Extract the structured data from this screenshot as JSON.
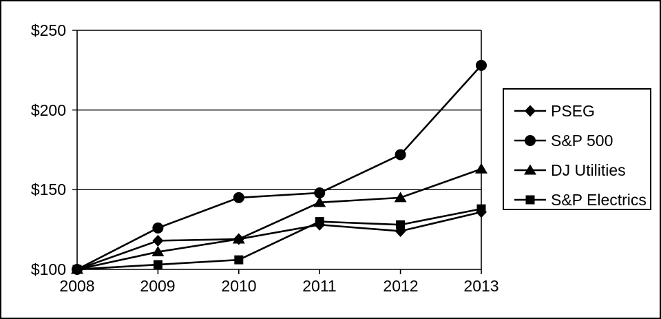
{
  "chart_data": {
    "type": "line",
    "title": "",
    "xlabel": "",
    "ylabel": "",
    "x_labels": [
      "2008",
      "2009",
      "2010",
      "2011",
      "2012",
      "2013"
    ],
    "series": [
      {
        "name": "PSEG",
        "marker": "diamond",
        "values": [
          100,
          118,
          119,
          128,
          124,
          136
        ]
      },
      {
        "name": "S&P 500",
        "marker": "circle",
        "values": [
          100,
          126,
          145,
          148,
          172,
          228
        ]
      },
      {
        "name": "DJ Utilities",
        "marker": "triangle",
        "values": [
          100,
          111,
          119,
          142,
          145,
          163
        ]
      },
      {
        "name": "S&P Electrics",
        "marker": "square",
        "values": [
          100,
          103,
          106,
          130,
          128,
          138
        ]
      }
    ],
    "y_ticks": [
      {
        "label": "$100",
        "value": 100
      },
      {
        "label": "$150",
        "value": 150
      },
      {
        "label": "$200",
        "value": 200
      },
      {
        "label": "$250",
        "value": 250
      }
    ],
    "ylim": [
      100,
      250
    ],
    "grid": "horizontal",
    "legend_position": "right",
    "colors": {
      "series": "#000000",
      "background": "#ffffff",
      "axis": "#000000"
    }
  }
}
